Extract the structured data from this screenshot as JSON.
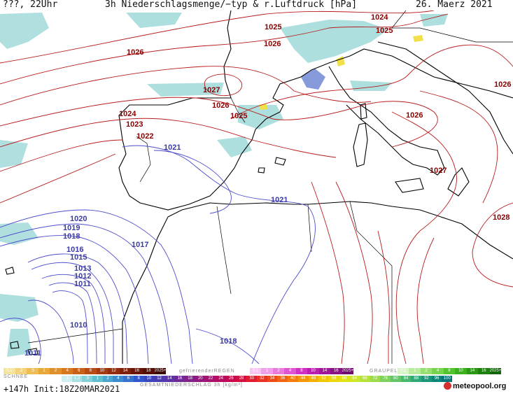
{
  "header": {
    "left": "???, 22Uhr",
    "center": "3h Niederschlagsmenge/−typ & r.Luftdruck [hPa]",
    "right": "26. Maerz 2021"
  },
  "isobars_red": [
    "1024",
    "1025",
    "1025",
    "1026",
    "1026",
    "1027",
    "1026",
    "1025",
    "1024",
    "1023",
    "1022",
    "1026",
    "1027",
    "1028",
    "1026"
  ],
  "isobars_blue": [
    "1021",
    "1021",
    "1020",
    "1019",
    "1018",
    "1017",
    "1016",
    "1015",
    "1013",
    "1012",
    "1011",
    "1010",
    "1018",
    "1011"
  ],
  "legend": {
    "snow_label": "SCHNEE",
    "snow_values": [
      "0.1",
      ".2",
      ".5",
      "1",
      "2",
      "4",
      "6",
      "8",
      "10",
      "12",
      "14",
      "16",
      "18",
      "2025+"
    ],
    "freezing_label": "gefrierenderREGEN",
    "freezing_values": [
      "0.1",
      "1",
      "2",
      "4",
      "8",
      "10",
      "14",
      "16",
      "2025+"
    ],
    "graupel_label": "GRAUPEL",
    "graupel_values": [
      "0.1",
      "1",
      "2",
      "4",
      "8",
      "10",
      "14",
      "16",
      "2025+"
    ],
    "total_values": [
      ".1",
      "1.2",
      ".5",
      "1",
      "2",
      "4",
      "6",
      "8",
      "10",
      "12",
      "14",
      "16",
      "18",
      "20",
      "22",
      "24",
      "26",
      "28",
      "30",
      "32",
      "34",
      "36",
      "40",
      "44",
      "48",
      "52",
      "56",
      "60",
      "64",
      "68",
      "72",
      "76",
      "80",
      "84",
      "88",
      "92",
      "96",
      "100"
    ],
    "total_label": "GESAMTNIEDERSCHLAG 3h [kg/m²]"
  },
  "footer": {
    "run_info": "+147h Init:18Z20MAR2021"
  },
  "logo": {
    "text": "meteopool.org"
  },
  "colors": {
    "isobar_high": "#b71c1c",
    "isobar_low": "#3f3fbf",
    "precip": "#9fd8d8",
    "coast": "#000000"
  }
}
